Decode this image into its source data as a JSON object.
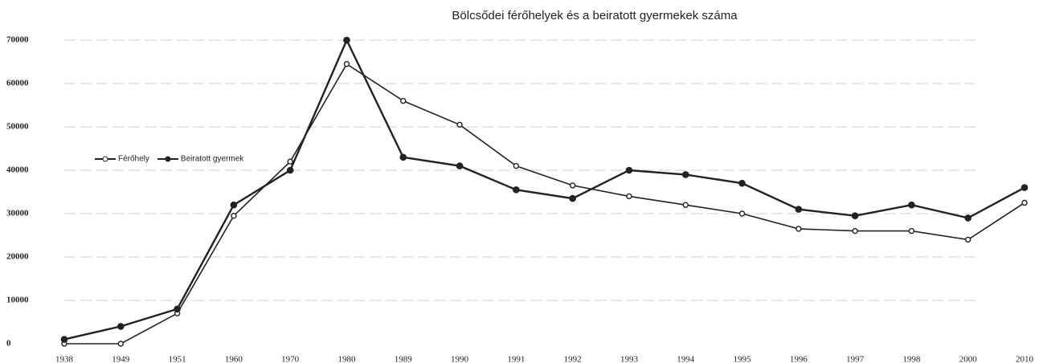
{
  "chart_data": {
    "type": "line",
    "title": "Bölcsődei férőhelyek és a beiratott gyermekek száma",
    "categories": [
      "1938",
      "1949",
      "1951",
      "1960",
      "1970",
      "1980",
      "1989",
      "1990",
      "1991",
      "1992",
      "1993",
      "1994",
      "1995",
      "1996",
      "1997",
      "1998",
      "2000",
      "2010"
    ],
    "series": [
      {
        "name": "Férőhely",
        "color": "#222222",
        "values": [
          0,
          0,
          7000,
          29500,
          42000,
          64500,
          56000,
          50500,
          41000,
          36500,
          34000,
          32000,
          30000,
          26500,
          26000,
          26000,
          24000,
          32500
        ]
      },
      {
        "name": "Beiratott gyermek",
        "color": "#222222",
        "values": [
          1000,
          4000,
          8000,
          32000,
          40000,
          70000,
          43000,
          41000,
          35500,
          33500,
          40000,
          39000,
          37000,
          31000,
          29500,
          32000,
          29000,
          36000
        ]
      }
    ],
    "ylim": [
      0,
      70000
    ],
    "yticks": [
      0,
      10000,
      20000,
      30000,
      40000,
      50000,
      60000,
      70000
    ],
    "grid": true,
    "legend": "left"
  }
}
